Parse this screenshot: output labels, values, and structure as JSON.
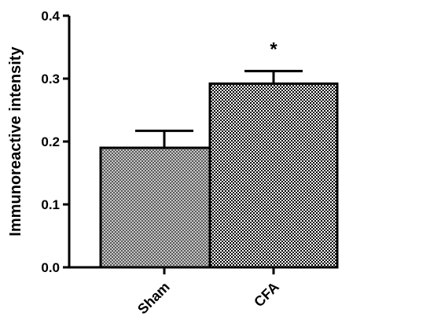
{
  "chart_data": {
    "type": "bar",
    "categories": [
      "Sham",
      "CFA"
    ],
    "values": [
      0.19,
      0.292
    ],
    "errors": [
      0.027,
      0.02
    ],
    "ylabel": "Immunoreactive intensity",
    "ylim": [
      0,
      0.4
    ],
    "yticks": [
      "0.0",
      "0.1",
      "0.2",
      "0.3",
      "0.4"
    ],
    "significance": [
      "",
      "*"
    ],
    "grid": false,
    "fill_patterns": [
      "fine-light-checker",
      "fine-dark-checker"
    ]
  }
}
